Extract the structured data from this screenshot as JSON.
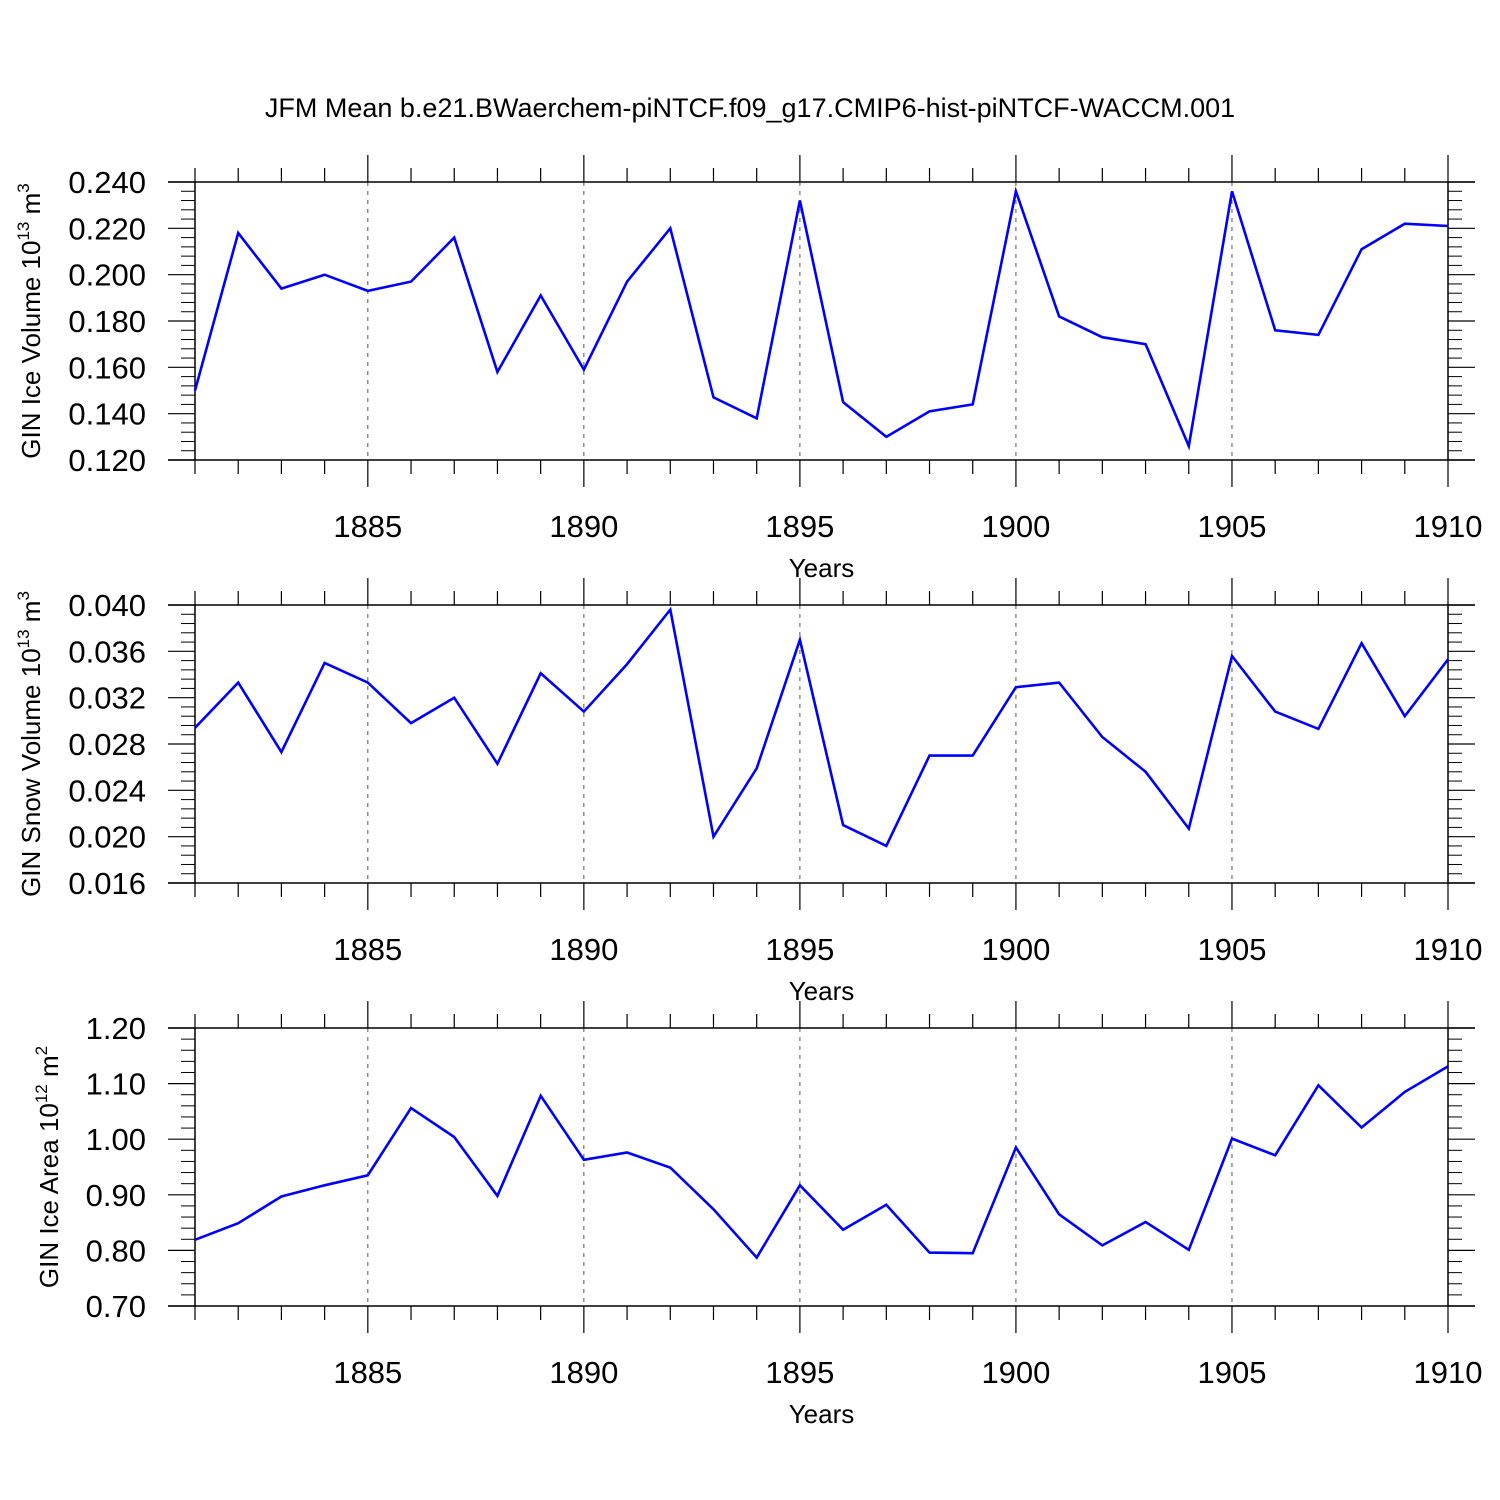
{
  "title": "JFM Mean b.e21.BWaerchem-piNTCF.f09_g17.CMIP6-hist-piNTCF-WACCM.001",
  "colors": {
    "line": "#0000ff",
    "axis": "#000000",
    "grid": "#555555"
  },
  "chart_data": [
    {
      "type": "line",
      "ylabel": {
        "base": "GIN Ice Volume 10",
        "exp": "13",
        "unit": " m",
        "unit_exp": "3"
      },
      "xlabel": "Years",
      "xlim": [
        1881,
        1910
      ],
      "ylim": [
        0.12,
        0.24
      ],
      "xticks": [
        "1885",
        "1890",
        "1895",
        "1900",
        "1905",
        "1910"
      ],
      "yticks": [
        "0.120",
        "0.140",
        "0.160",
        "0.180",
        "0.200",
        "0.220",
        "0.240"
      ],
      "x": [
        1881,
        1882,
        1883,
        1884,
        1885,
        1886,
        1887,
        1888,
        1889,
        1890,
        1891,
        1892,
        1893,
        1894,
        1895,
        1896,
        1897,
        1898,
        1899,
        1900,
        1901,
        1902,
        1903,
        1904,
        1905,
        1906,
        1907,
        1908,
        1909,
        1910
      ],
      "values": [
        0.15,
        0.218,
        0.194,
        0.2,
        0.193,
        0.197,
        0.216,
        0.158,
        0.191,
        0.159,
        0.197,
        0.22,
        0.147,
        0.138,
        0.232,
        0.145,
        0.13,
        0.141,
        0.144,
        0.236,
        0.182,
        0.173,
        0.17,
        0.126,
        0.236,
        0.176,
        0.174,
        0.211,
        0.222,
        0.221
      ]
    },
    {
      "type": "line",
      "ylabel": {
        "base": "GIN Snow Volume 10",
        "exp": "13",
        "unit": " m",
        "unit_exp": "3"
      },
      "xlabel": "Years",
      "xlim": [
        1881,
        1910
      ],
      "ylim": [
        0.016,
        0.04
      ],
      "xticks": [
        "1885",
        "1890",
        "1895",
        "1900",
        "1905",
        "1910"
      ],
      "yticks": [
        "0.016",
        "0.020",
        "0.024",
        "0.028",
        "0.032",
        "0.036",
        "0.040"
      ],
      "x": [
        1881,
        1882,
        1883,
        1884,
        1885,
        1886,
        1887,
        1888,
        1889,
        1890,
        1891,
        1892,
        1893,
        1894,
        1895,
        1896,
        1897,
        1898,
        1899,
        1900,
        1901,
        1902,
        1903,
        1904,
        1905,
        1906,
        1907,
        1908,
        1909,
        1910
      ],
      "values": [
        0.0294,
        0.0333,
        0.0273,
        0.035,
        0.0333,
        0.0298,
        0.032,
        0.0263,
        0.0341,
        0.0308,
        0.0349,
        0.0396,
        0.02,
        0.0259,
        0.037,
        0.021,
        0.0192,
        0.027,
        0.027,
        0.0329,
        0.0333,
        0.0286,
        0.0256,
        0.0207,
        0.0356,
        0.0308,
        0.0293,
        0.0367,
        0.0304,
        0.0353
      ]
    },
    {
      "type": "line",
      "ylabel": {
        "base": "GIN Ice Area 10",
        "exp": "12",
        "unit": " m",
        "unit_exp": "2"
      },
      "xlabel": "Years",
      "xlim": [
        1881,
        1910
      ],
      "ylim": [
        0.7,
        1.2
      ],
      "xticks": [
        "1885",
        "1890",
        "1895",
        "1900",
        "1905",
        "1910"
      ],
      "yticks": [
        "0.70",
        "0.80",
        "0.90",
        "1.00",
        "1.10",
        "1.20"
      ],
      "x": [
        1881,
        1882,
        1883,
        1884,
        1885,
        1886,
        1887,
        1888,
        1889,
        1890,
        1891,
        1892,
        1893,
        1894,
        1895,
        1896,
        1897,
        1898,
        1899,
        1900,
        1901,
        1902,
        1903,
        1904,
        1905,
        1906,
        1907,
        1908,
        1909,
        1910
      ],
      "values": [
        0.819,
        0.849,
        0.897,
        0.917,
        0.935,
        1.056,
        1.004,
        0.898,
        1.078,
        0.963,
        0.976,
        0.949,
        0.874,
        0.787,
        0.917,
        0.837,
        0.882,
        0.796,
        0.795,
        0.985,
        0.865,
        0.809,
        0.851,
        0.801,
        1.001,
        0.971,
        1.097,
        1.021,
        1.085,
        1.131
      ]
    }
  ]
}
